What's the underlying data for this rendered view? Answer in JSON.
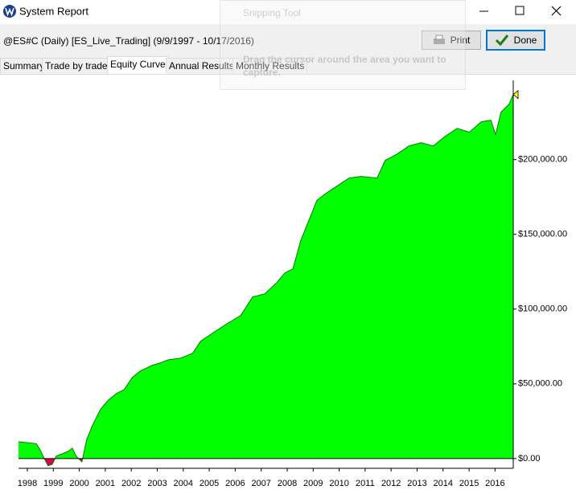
{
  "window": {
    "title": "System Report"
  },
  "header": {
    "description": "@ES#C (Daily) [ES_Live_Trading]  (9/9/1997 - 10/17/2016)",
    "print_button": "Print",
    "done_button": "Done"
  },
  "tabs": [
    "Summary",
    "Trade by trade",
    "Equity Curve",
    "Annual Results",
    "Monthly Results"
  ],
  "overlay": {
    "title": "Snipping Tool",
    "message": [
      "Drag the cursor around the area you want to",
      "capture."
    ]
  },
  "chart_data": {
    "type": "area",
    "x": [
      1997.66,
      1998.34,
      1998.49,
      1998.65,
      1998.8,
      1998.96,
      1999.11,
      1999.27,
      1999.57,
      1999.73,
      1999.88,
      2000.1,
      2000.28,
      2000.5,
      2000.81,
      2001.12,
      2001.43,
      2001.73,
      2002.04,
      2002.35,
      2002.81,
      2003.12,
      2003.43,
      2003.9,
      2004.36,
      2004.67,
      2005.13,
      2005.59,
      2006.21,
      2006.67,
      2007.14,
      2007.6,
      2007.91,
      2008.22,
      2008.52,
      2008.83,
      2009.14,
      2009.45,
      2009.91,
      2010.38,
      2010.84,
      2011.46,
      2011.77,
      2012.23,
      2012.69,
      2013.15,
      2013.62,
      2014.08,
      2014.54,
      2015.01,
      2015.47,
      2015.84,
      2016.02,
      2016.23,
      2016.54,
      2016.7
    ],
    "values": [
      11300,
      10000,
      5900,
      0,
      -4800,
      -3800,
      1600,
      2700,
      4800,
      7000,
      1600,
      -2200,
      12400,
      22000,
      32800,
      39200,
      43500,
      46200,
      54300,
      58600,
      62400,
      64000,
      66100,
      67200,
      70400,
      78500,
      83900,
      89200,
      95700,
      108100,
      110200,
      117700,
      124200,
      126900,
      145700,
      159100,
      172600,
      176900,
      182200,
      187600,
      188700,
      187600,
      199400,
      203700,
      209100,
      211300,
      209100,
      215600,
      220900,
      218300,
      225300,
      226300,
      216700,
      231700,
      237100,
      243500
    ],
    "color": "#00ff00",
    "negative_color": "#e0004a",
    "line_color": "#007a00",
    "xlim": [
      1997.66,
      2016.7
    ],
    "xticks": [
      1998,
      1999,
      2000,
      2001,
      2002,
      2003,
      2004,
      2005,
      2006,
      2007,
      2008,
      2009,
      2010,
      2011,
      2012,
      2013,
      2014,
      2015,
      2016
    ],
    "ylim": [
      -6500,
      253000
    ],
    "yticks": [
      {
        "value": 0,
        "label": "$0.00"
      },
      {
        "value": 50000,
        "label": "$50,000.00"
      },
      {
        "value": 100000,
        "label": "$100,000.00"
      },
      {
        "value": 150000,
        "label": "$150,000.00"
      },
      {
        "value": 200000,
        "label": "$200,000.00"
      }
    ]
  }
}
